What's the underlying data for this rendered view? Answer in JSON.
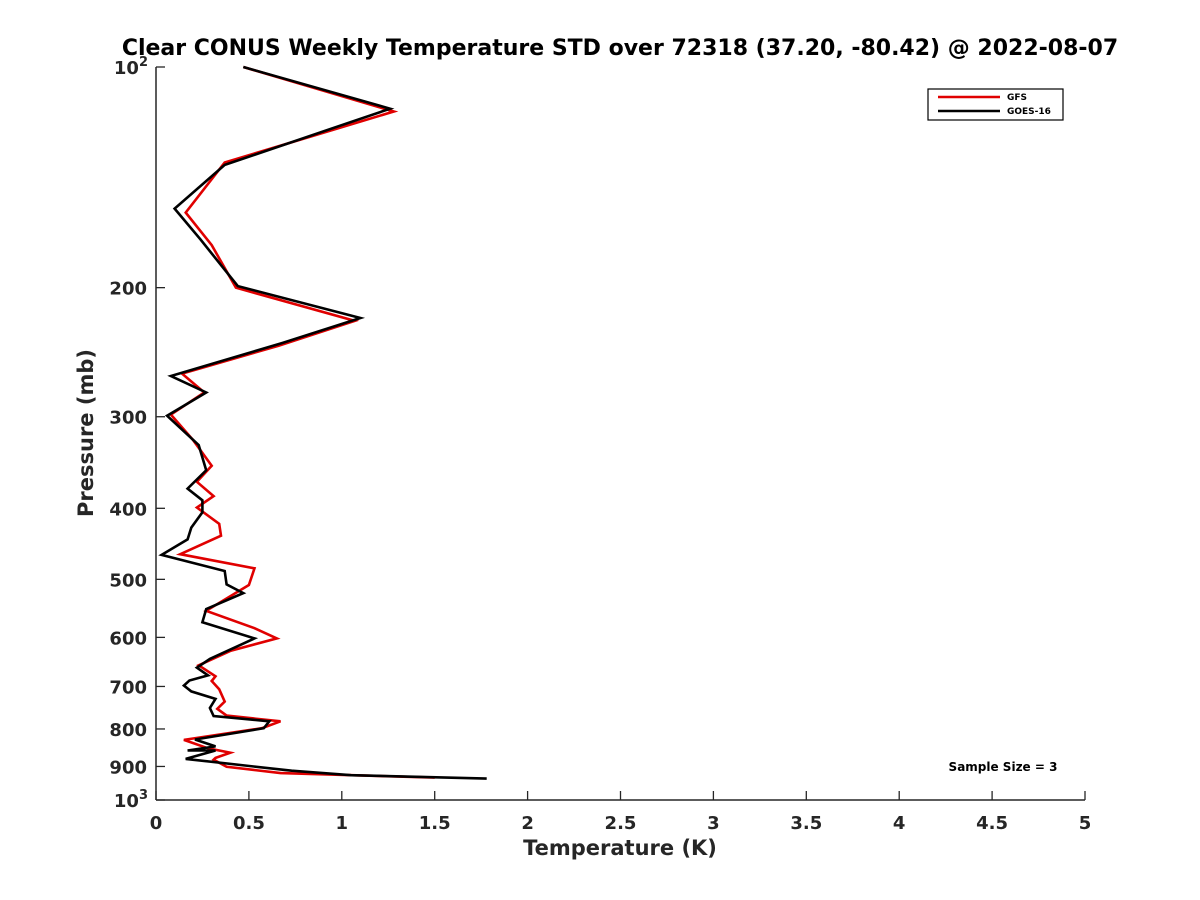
{
  "chart_data": {
    "type": "line",
    "title": "Clear CONUS Weekly Temperature STD over 72318 (37.20, -80.42) @ 2022-08-07",
    "xlabel": "Temperature (K)",
    "ylabel": "Pressure (mb)",
    "xlim": [
      0,
      5
    ],
    "ylim": [
      100,
      1000
    ],
    "y_scale": "log",
    "y_reversed": true,
    "grid": false,
    "legend_position": "top-right",
    "x_ticks": [
      {
        "value": 0,
        "label": "0"
      },
      {
        "value": 0.5,
        "label": "0.5"
      },
      {
        "value": 1,
        "label": "1"
      },
      {
        "value": 1.5,
        "label": "1.5"
      },
      {
        "value": 2,
        "label": "2"
      },
      {
        "value": 2.5,
        "label": "2.5"
      },
      {
        "value": 3,
        "label": "3"
      },
      {
        "value": 3.5,
        "label": "3.5"
      },
      {
        "value": 4,
        "label": "4"
      },
      {
        "value": 4.5,
        "label": "4.5"
      },
      {
        "value": 5,
        "label": "5"
      }
    ],
    "y_ticks": [
      {
        "value": 100,
        "label": "10",
        "exp": "2"
      },
      {
        "value": 200,
        "label": "200"
      },
      {
        "value": 300,
        "label": "300"
      },
      {
        "value": 400,
        "label": "400"
      },
      {
        "value": 500,
        "label": "500"
      },
      {
        "value": 600,
        "label": "600"
      },
      {
        "value": 700,
        "label": "700"
      },
      {
        "value": 800,
        "label": "800"
      },
      {
        "value": 900,
        "label": "900"
      },
      {
        "value": 1000,
        "label": "10",
        "exp": "3"
      }
    ],
    "series": [
      {
        "name": "GFS",
        "color": "#e00000",
        "points": [
          [
            0.47,
            100
          ],
          [
            1.28,
            115
          ],
          [
            0.37,
            135
          ],
          [
            0.16,
            158
          ],
          [
            0.3,
            175
          ],
          [
            0.43,
            200
          ],
          [
            1.07,
            222
          ],
          [
            0.66,
            240
          ],
          [
            0.14,
            262
          ],
          [
            0.26,
            278
          ],
          [
            0.08,
            298
          ],
          [
            0.2,
            323
          ],
          [
            0.3,
            350
          ],
          [
            0.22,
            368
          ],
          [
            0.31,
            385
          ],
          [
            0.22,
            399
          ],
          [
            0.34,
            420
          ],
          [
            0.35,
            436
          ],
          [
            0.13,
            462
          ],
          [
            0.53,
            483
          ],
          [
            0.5,
            509
          ],
          [
            0.27,
            552
          ],
          [
            0.53,
            583
          ],
          [
            0.65,
            602
          ],
          [
            0.4,
            626
          ],
          [
            0.23,
            655
          ],
          [
            0.32,
            678
          ],
          [
            0.3,
            688
          ],
          [
            0.34,
            706
          ],
          [
            0.37,
            734
          ],
          [
            0.33,
            751
          ],
          [
            0.38,
            767
          ],
          [
            0.67,
            781
          ],
          [
            0.57,
            798
          ],
          [
            0.15,
            828
          ],
          [
            0.28,
            850
          ],
          [
            0.4,
            862
          ],
          [
            0.32,
            876
          ],
          [
            0.31,
            881
          ],
          [
            0.38,
            901
          ],
          [
            0.67,
            919
          ],
          [
            1.5,
            932
          ]
        ]
      },
      {
        "name": "GOES-16",
        "color": "#000000",
        "points": [
          [
            0.47,
            100
          ],
          [
            1.26,
            114
          ],
          [
            0.37,
            136
          ],
          [
            0.1,
            156
          ],
          [
            0.24,
            172
          ],
          [
            0.44,
            199
          ],
          [
            1.1,
            220
          ],
          [
            0.68,
            238
          ],
          [
            0.08,
            264
          ],
          [
            0.27,
            278
          ],
          [
            0.06,
            299
          ],
          [
            0.23,
            328
          ],
          [
            0.27,
            355
          ],
          [
            0.17,
            376
          ],
          [
            0.25,
            390
          ],
          [
            0.25,
            405
          ],
          [
            0.19,
            425
          ],
          [
            0.17,
            441
          ],
          [
            0.03,
            463
          ],
          [
            0.37,
            487
          ],
          [
            0.38,
            508
          ],
          [
            0.47,
            522
          ],
          [
            0.27,
            549
          ],
          [
            0.25,
            572
          ],
          [
            0.53,
            602
          ],
          [
            0.29,
            642
          ],
          [
            0.22,
            660
          ],
          [
            0.28,
            676
          ],
          [
            0.18,
            687
          ],
          [
            0.15,
            698
          ],
          [
            0.19,
            711
          ],
          [
            0.32,
            728
          ],
          [
            0.29,
            749
          ],
          [
            0.31,
            768
          ],
          [
            0.61,
            781
          ],
          [
            0.58,
            798
          ],
          [
            0.21,
            827
          ],
          [
            0.32,
            845
          ],
          [
            0.17,
            856
          ],
          [
            0.32,
            856
          ],
          [
            0.16,
            879
          ],
          [
            0.73,
            912
          ],
          [
            1.05,
            925
          ],
          [
            1.78,
            935
          ]
        ]
      }
    ],
    "annotation": "Sample Size = 3"
  }
}
